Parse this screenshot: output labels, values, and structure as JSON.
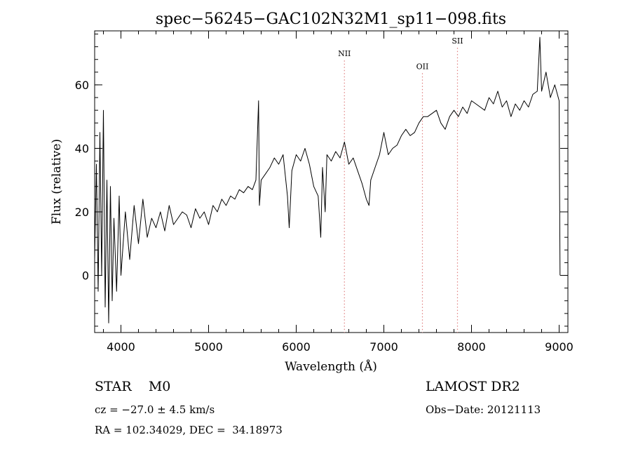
{
  "chart_data": {
    "type": "line",
    "title": "spec−56245−GAC102N32M1_sp11−098.fits",
    "xlabel": "Wavelength (Å)",
    "ylabel": "Flux (relative)",
    "xlim": [
      3700,
      9100
    ],
    "ylim": [
      -18,
      77
    ],
    "x_ticks": [
      4000,
      5000,
      6000,
      7000,
      8000,
      9000
    ],
    "y_ticks": [
      0,
      20,
      40,
      60
    ],
    "x_minor_step": 200,
    "y_minor_step": 4,
    "line_color": "#000000",
    "marker_color": "#e08080",
    "lines": [
      {
        "name": "NII",
        "x": 6550,
        "label_y": 69
      },
      {
        "name": "OII",
        "x": 7440,
        "label_y": 65
      },
      {
        "name": "SII",
        "x": 7840,
        "label_y": 73
      }
    ],
    "series": [
      {
        "x": [
          3700,
          3720,
          3740,
          3760,
          3780,
          3800,
          3820,
          3840,
          3860,
          3880,
          3900,
          3920,
          3950,
          3980,
          4000,
          4050,
          4100,
          4150,
          4200,
          4250,
          4300,
          4350,
          4400,
          4450,
          4500,
          4550,
          4600,
          4650,
          4700,
          4750,
          4800,
          4850,
          4900,
          4950,
          5000,
          5050,
          5100,
          5150,
          5200,
          5250,
          5300,
          5350,
          5400,
          5450,
          5500,
          5540,
          5570,
          5580,
          5600,
          5650,
          5700,
          5750,
          5800,
          5850,
          5900,
          5920,
          5950,
          6000,
          6050,
          6100,
          6150,
          6200,
          6250,
          6280,
          6300,
          6330,
          6350,
          6400,
          6450,
          6500,
          6550,
          6600,
          6650,
          6700,
          6750,
          6800,
          6830,
          6850,
          6900,
          6950,
          7000,
          7050,
          7100,
          7150,
          7200,
          7250,
          7300,
          7350,
          7400,
          7450,
          7500,
          7550,
          7600,
          7650,
          7700,
          7750,
          7800,
          7850,
          7900,
          7950,
          8000,
          8050,
          8100,
          8150,
          8200,
          8250,
          8300,
          8350,
          8400,
          8450,
          8500,
          8550,
          8600,
          8650,
          8700,
          8750,
          8780,
          8800,
          8850,
          8900,
          8950,
          9000,
          9010
        ],
        "y": [
          5,
          35,
          -5,
          45,
          0,
          52,
          -10,
          30,
          -15,
          28,
          -8,
          18,
          -5,
          25,
          0,
          20,
          5,
          22,
          10,
          24,
          12,
          18,
          15,
          20,
          14,
          22,
          16,
          18,
          20,
          19,
          15,
          21,
          18,
          20,
          16,
          22,
          20,
          24,
          22,
          25,
          24,
          27,
          26,
          28,
          27,
          30,
          55,
          22,
          30,
          32,
          34,
          37,
          35,
          38,
          25,
          15,
          33,
          38,
          36,
          40,
          35,
          28,
          25,
          12,
          34,
          20,
          38,
          36,
          39,
          37,
          42,
          35,
          37,
          33,
          29,
          24,
          22,
          30,
          34,
          38,
          45,
          38,
          40,
          41,
          44,
          46,
          44,
          45,
          48,
          50,
          50,
          51,
          52,
          48,
          46,
          50,
          52,
          50,
          53,
          51,
          55,
          54,
          53,
          52,
          56,
          54,
          58,
          53,
          55,
          50,
          54,
          52,
          55,
          53,
          57,
          58,
          75,
          58,
          64,
          56,
          60,
          55,
          0
        ]
      }
    ]
  },
  "info": {
    "left_line1": "STAR    M0",
    "right_line1": "LAMOST DR2",
    "left_line2": "cz = −27.0 ± 4.5 km/s",
    "right_line2": "Obs−Date: 20121113",
    "left_line3": "RA = 102.34029, DEC =  34.18973"
  }
}
